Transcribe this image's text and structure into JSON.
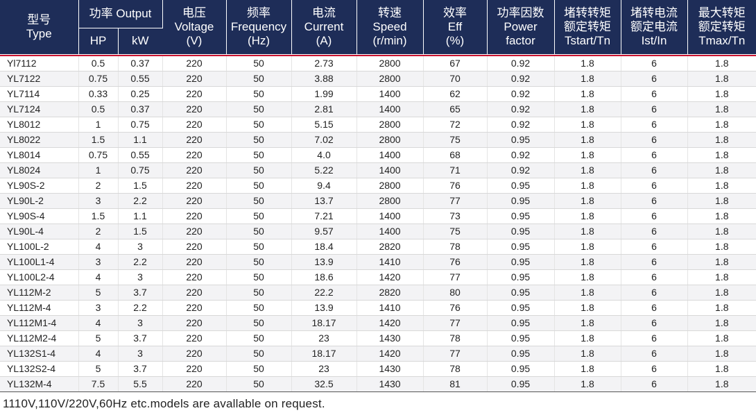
{
  "header": {
    "type_cn": "型号",
    "type_en": "Type",
    "output": "功率 Output",
    "hp": "HP",
    "kw": "kW",
    "voltage_cn": "电压",
    "voltage_en": "Voltage",
    "voltage_unit": "(V)",
    "freq_cn": "频率",
    "freq_en": "Frequency",
    "freq_unit": "(Hz)",
    "current_cn": "电流",
    "current_en": "Current",
    "current_unit": "(A)",
    "speed_cn": "转速",
    "speed_en": "Speed",
    "speed_unit": "(r/min)",
    "eff_cn": "效率",
    "eff_en": "Eff",
    "eff_unit": "(%)",
    "pf_cn": "功率因数",
    "pf_en1": "Power",
    "pf_en2": "factor",
    "tstart_cn1": "堵转转矩",
    "tstart_cn2": "额定转矩",
    "tstart_en": "Tstart/Tn",
    "ist_cn1": "堵转电流",
    "ist_cn2": "额定电流",
    "ist_en": "Ist/In",
    "tmax_cn1": "最大转矩",
    "tmax_cn2": "额定转矩",
    "tmax_en": "Tmax/Tn"
  },
  "rows": [
    [
      "Yl7112",
      "0.5",
      "0.37",
      "220",
      "50",
      "2.73",
      "2800",
      "67",
      "0.92",
      "1.8",
      "6",
      "1.8"
    ],
    [
      "YL7122",
      "0.75",
      "0.55",
      "220",
      "50",
      "3.88",
      "2800",
      "70",
      "0.92",
      "1.8",
      "6",
      "1.8"
    ],
    [
      "YL7114",
      "0.33",
      "0.25",
      "220",
      "50",
      "1.99",
      "1400",
      "62",
      "0.92",
      "1.8",
      "6",
      "1.8"
    ],
    [
      "YL7124",
      "0.5",
      "0.37",
      "220",
      "50",
      "2.81",
      "1400",
      "65",
      "0.92",
      "1.8",
      "6",
      "1.8"
    ],
    [
      "YL8012",
      "1",
      "0.75",
      "220",
      "50",
      "5.15",
      "2800",
      "72",
      "0.92",
      "1.8",
      "6",
      "1.8"
    ],
    [
      "YL8022",
      "1.5",
      "1.1",
      "220",
      "50",
      "7.02",
      "2800",
      "75",
      "0.95",
      "1.8",
      "6",
      "1.8"
    ],
    [
      "YL8014",
      "0.75",
      "0.55",
      "220",
      "50",
      "4.0",
      "1400",
      "68",
      "0.92",
      "1.8",
      "6",
      "1.8"
    ],
    [
      "YL8024",
      "1",
      "0.75",
      "220",
      "50",
      "5.22",
      "1400",
      "71",
      "0.92",
      "1.8",
      "6",
      "1.8"
    ],
    [
      "YL90S-2",
      "2",
      "1.5",
      "220",
      "50",
      "9.4",
      "2800",
      "76",
      "0.95",
      "1.8",
      "6",
      "1.8"
    ],
    [
      "YL90L-2",
      "3",
      "2.2",
      "220",
      "50",
      "13.7",
      "2800",
      "77",
      "0.95",
      "1.8",
      "6",
      "1.8"
    ],
    [
      "YL90S-4",
      "1.5",
      "1.1",
      "220",
      "50",
      "7.21",
      "1400",
      "73",
      "0.95",
      "1.8",
      "6",
      "1.8"
    ],
    [
      "YL90L-4",
      "2",
      "1.5",
      "220",
      "50",
      "9.57",
      "1400",
      "75",
      "0.95",
      "1.8",
      "6",
      "1.8"
    ],
    [
      "YL100L-2",
      "4",
      "3",
      "220",
      "50",
      "18.4",
      "2820",
      "78",
      "0.95",
      "1.8",
      "6",
      "1.8"
    ],
    [
      "YL100L1-4",
      "3",
      "2.2",
      "220",
      "50",
      "13.9",
      "1410",
      "76",
      "0.95",
      "1.8",
      "6",
      "1.8"
    ],
    [
      "YL100L2-4",
      "4",
      "3",
      "220",
      "50",
      "18.6",
      "1420",
      "77",
      "0.95",
      "1.8",
      "6",
      "1.8"
    ],
    [
      "YL112M-2",
      "5",
      "3.7",
      "220",
      "50",
      "22.2",
      "2820",
      "80",
      "0.95",
      "1.8",
      "6",
      "1.8"
    ],
    [
      "YL112M-4",
      "3",
      "2.2",
      "220",
      "50",
      "13.9",
      "1410",
      "76",
      "0.95",
      "1.8",
      "6",
      "1.8"
    ],
    [
      "YL112M1-4",
      "4",
      "3",
      "220",
      "50",
      "18.17",
      "1420",
      "77",
      "0.95",
      "1.8",
      "6",
      "1.8"
    ],
    [
      "YL112M2-4",
      "5",
      "3.7",
      "220",
      "50",
      "23",
      "1430",
      "78",
      "0.95",
      "1.8",
      "6",
      "1.8"
    ],
    [
      "YL132S1-4",
      "4",
      "3",
      "220",
      "50",
      "18.17",
      "1420",
      "77",
      "0.95",
      "1.8",
      "6",
      "1.8"
    ],
    [
      "YL132S2-4",
      "5",
      "3.7",
      "220",
      "50",
      "23",
      "1430",
      "78",
      "0.95",
      "1.8",
      "6",
      "1.8"
    ],
    [
      "YL132M-4",
      "7.5",
      "5.5",
      "220",
      "50",
      "32.5",
      "1430",
      "81",
      "0.95",
      "1.8",
      "6",
      "1.8"
    ]
  ],
  "note": "1110V,110V/220V,60Hz etc.models are avallable on request.",
  "colors": {
    "header_bg": "#1e2d58",
    "accent_line": "#c8102e",
    "stripe": "#f3f3f5"
  }
}
